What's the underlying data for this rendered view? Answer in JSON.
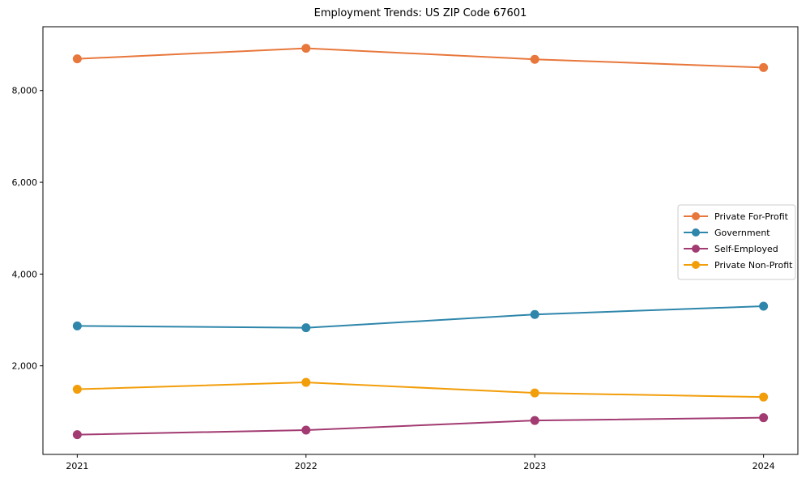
{
  "chart_data": {
    "type": "line",
    "title": "Employment Trends: US ZIP Code 67601",
    "categories": [
      "2021",
      "2022",
      "2023",
      "2024"
    ],
    "series": [
      {
        "name": "Private For-Profit",
        "color": "#E8773C",
        "values": [
          8690,
          8920,
          8680,
          8500
        ]
      },
      {
        "name": "Government",
        "color": "#2E86AB",
        "values": [
          2870,
          2830,
          3120,
          3300
        ]
      },
      {
        "name": "Self-Employed",
        "color": "#A23B72",
        "values": [
          500,
          600,
          810,
          870
        ]
      },
      {
        "name": "Private Non-Profit",
        "color": "#F29E0B",
        "values": [
          1490,
          1640,
          1410,
          1320
        ]
      }
    ],
    "yticks": [
      2000,
      4000,
      6000,
      8000
    ],
    "ytick_labels": [
      "2,000",
      "4,000",
      "6,000",
      "8,000"
    ],
    "ylim": [
      70,
      9390
    ],
    "xlim_padding": 0.15,
    "grid": false,
    "legend_position": "center right",
    "marker": "circle",
    "line_width": 2,
    "axis_color": "#000000",
    "legend_border_color": "#cccccc",
    "background": "#ffffff"
  }
}
